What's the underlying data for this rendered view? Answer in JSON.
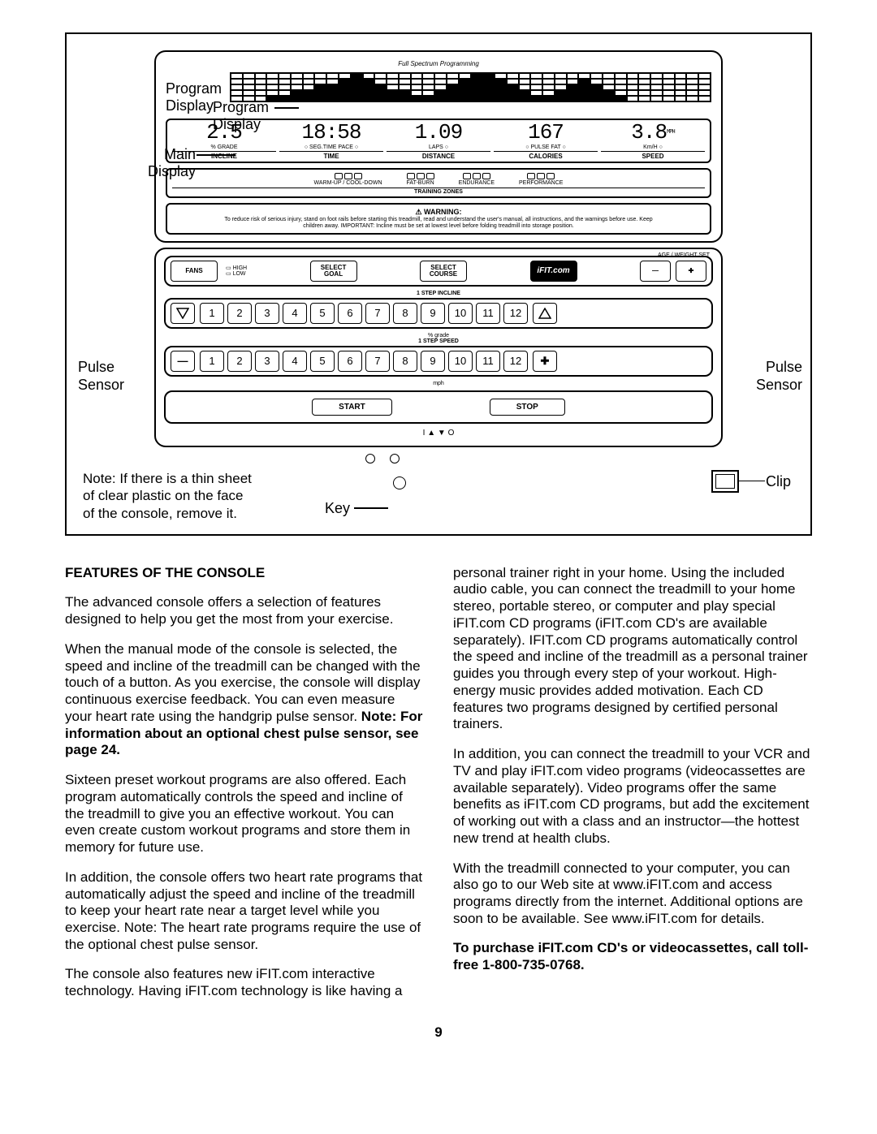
{
  "callouts": {
    "program_display": "Program\nDisplay",
    "main_display": "Main\nDisplay",
    "pulse_sensor_left": "Pulse\nSensor",
    "pulse_sensor_right": "Pulse\nSensor",
    "clip": "Clip",
    "key": "Key",
    "note_plastic": "Note: If there is a thin sheet\nof clear plastic on the face\nof the console, remove it."
  },
  "prog_caption": "Full Spectrum Programming",
  "lcd": {
    "cells": [
      {
        "val": "2.5",
        "sub1": "% GRADE",
        "sub2": "INCLINE"
      },
      {
        "val": "18:58",
        "sub1": "○ SEG.TIME  PACE ○",
        "sub2": "TIME"
      },
      {
        "val": "1.09",
        "sub1": "LAPS ○",
        "sub2": "DISTANCE"
      },
      {
        "val": "167",
        "sub1": "○ PULSE  FAT ○",
        "sub2": "CALORIES"
      },
      {
        "val": "3.8",
        "sub1": "Km/H ○",
        "sub2": "SPEED",
        "mph": "MPH"
      }
    ]
  },
  "zones": {
    "segments": [
      "WARM-UP / COOL-DOWN",
      "FAT-BURN",
      "ENDURANCE",
      "PERFORMANCE"
    ],
    "title": "TRAINING ZONES"
  },
  "warning": {
    "title": "⚠ WARNING:",
    "text": "To reduce risk of serious injury, stand on foot rails before starting this treadmill, read and understand the user's manual, all instructions, and the warnings before use. Keep children away. IMPORTANT: Incline must be set at lowest level before folding treadmill into storage position."
  },
  "mid": {
    "age_weight": "AGE / WEIGHT SET",
    "fans": "FANS",
    "high": "HIGH",
    "low": "LOW",
    "select_goal": "SELECT\nGOAL",
    "select_course": "SELECT\nCOURSE",
    "ifit": "iFIT.com",
    "incline_caption": "1 STEP INCLINE",
    "speed_caption": "1 STEP SPEED",
    "grade_unit": "% grade",
    "mph_unit": "mph",
    "incline_nums": [
      "1",
      "2",
      "3",
      "4",
      "5",
      "6",
      "7",
      "8",
      "9",
      "10",
      "11",
      "12"
    ],
    "speed_nums": [
      "1",
      "2",
      "3",
      "4",
      "5",
      "6",
      "7",
      "8",
      "9",
      "10",
      "11",
      "12"
    ],
    "start": "START",
    "stop": "STOP",
    "arrows": "I ▲     ▼ O"
  },
  "article": {
    "heading": "FEATURES OF THE CONSOLE",
    "left": {
      "p1": "The advanced console offers a selection of features designed to help you get the most from your exercise.",
      "p2a": "When the manual mode of the console is selected, the speed and incline of the treadmill can be changed with the touch of a button. As you exercise, the console will display continuous exercise feedback. You can even measure your heart rate using the handgrip pulse sensor. ",
      "p2b": "Note: For information about an optional chest pulse sensor, see page 24.",
      "p3": "Sixteen preset workout programs are also offered. Each program automatically controls the speed and incline of the treadmill to give you an effective workout. You can even create custom workout programs and store them in memory for future use.",
      "p4": "In addition, the console offers two heart rate programs that automatically adjust the speed and incline of the treadmill to keep your heart rate near a target level while you exercise. Note: The heart rate programs require the use of the optional chest pulse sensor.",
      "p5": "The console also features new iFIT.com interactive technology. Having iFIT.com technology is like having a"
    },
    "right": {
      "p1": "personal trainer right in your home. Using the included audio cable, you can connect the treadmill to your home stereo, portable stereo, or computer and play special iFIT.com CD programs (iFIT.com CD's are available separately). IFIT.com CD programs automatically control the speed and incline of the treadmill as a personal trainer guides you through every step of your workout. High-energy music provides added motivation. Each CD features two programs designed by certified personal trainers.",
      "p2": "In addition, you can connect the treadmill to your VCR and TV and play iFIT.com video programs (videocassettes are available separately). Video programs offer the same benefits as iFIT.com CD programs, but add the excitement of working out with a class and an instructor—the hottest new trend at health clubs.",
      "p3": "With the treadmill connected to your computer, you can also go to our Web site at www.iFIT.com and access programs directly from the internet. Additional options are soon to be available. See www.iFIT.com for details.",
      "p4": "To purchase iFIT.com CD's or videocassettes, call toll-free 1-800-735-0768."
    }
  },
  "page": "9"
}
